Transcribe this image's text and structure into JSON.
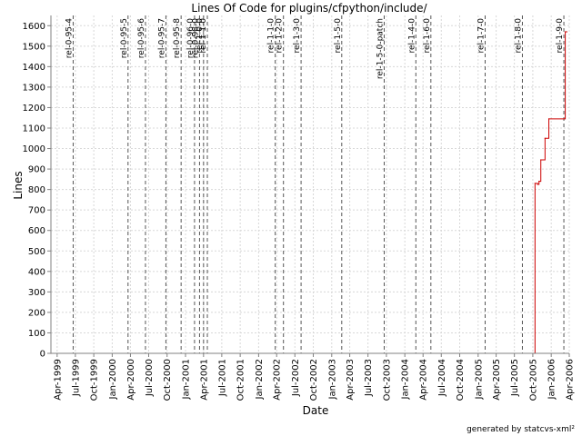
{
  "chart_data": {
    "type": "line",
    "title": "Lines Of Code for plugins/cfpython/include/",
    "xlabel": "Date",
    "ylabel": "Lines",
    "xlim": [
      "1999-03-01",
      "2006-04-01"
    ],
    "ylim": [
      0,
      1650
    ],
    "yticks": [
      0,
      100,
      200,
      300,
      400,
      500,
      600,
      700,
      800,
      900,
      1000,
      1100,
      1200,
      1300,
      1400,
      1500,
      1600
    ],
    "xticks": [
      {
        "date": "1999-04-01",
        "label": "Apr-1999"
      },
      {
        "date": "1999-07-01",
        "label": "Jul-1999"
      },
      {
        "date": "1999-10-01",
        "label": "Oct-1999"
      },
      {
        "date": "2000-01-01",
        "label": "Jan-2000"
      },
      {
        "date": "2000-04-01",
        "label": "Apr-2000"
      },
      {
        "date": "2000-07-01",
        "label": "Jul-2000"
      },
      {
        "date": "2000-10-01",
        "label": "Oct-2000"
      },
      {
        "date": "2001-01-01",
        "label": "Jan-2001"
      },
      {
        "date": "2001-04-01",
        "label": "Apr-2001"
      },
      {
        "date": "2001-07-01",
        "label": "Jul-2001"
      },
      {
        "date": "2001-10-01",
        "label": "Oct-2001"
      },
      {
        "date": "2002-01-01",
        "label": "Jan-2002"
      },
      {
        "date": "2002-04-01",
        "label": "Apr-2002"
      },
      {
        "date": "2002-07-01",
        "label": "Jul-2002"
      },
      {
        "date": "2002-10-01",
        "label": "Oct-2002"
      },
      {
        "date": "2003-01-01",
        "label": "Jan-2003"
      },
      {
        "date": "2003-04-01",
        "label": "Apr-2003"
      },
      {
        "date": "2003-07-01",
        "label": "Jul-2003"
      },
      {
        "date": "2003-10-01",
        "label": "Oct-2003"
      },
      {
        "date": "2004-01-01",
        "label": "Jan-2004"
      },
      {
        "date": "2004-04-01",
        "label": "Apr-2004"
      },
      {
        "date": "2004-07-01",
        "label": "Jul-2004"
      },
      {
        "date": "2004-10-01",
        "label": "Oct-2004"
      },
      {
        "date": "2005-01-01",
        "label": "Jan-2005"
      },
      {
        "date": "2005-04-01",
        "label": "Apr-2005"
      },
      {
        "date": "2005-07-01",
        "label": "Jul-2005"
      },
      {
        "date": "2005-10-01",
        "label": "Oct-2005"
      },
      {
        "date": "2006-01-01",
        "label": "Jan-2006"
      },
      {
        "date": "2006-04-01",
        "label": "Apr-2006"
      }
    ],
    "grid": true,
    "legend": "none",
    "series": [
      {
        "color": "#cc0000",
        "step": true,
        "points": [
          {
            "x": "1999-03-01",
            "y": 0
          },
          {
            "x": "2005-10-10",
            "y": 0
          },
          {
            "x": "2005-10-12",
            "y": 830
          },
          {
            "x": "2005-10-25",
            "y": 825
          },
          {
            "x": "2005-11-01",
            "y": 840
          },
          {
            "x": "2005-11-10",
            "y": 945
          },
          {
            "x": "2005-12-01",
            "y": 1050
          },
          {
            "x": "2005-12-20",
            "y": 1145
          },
          {
            "x": "2006-03-05",
            "y": 1145
          },
          {
            "x": "2006-03-12",
            "y": 1570
          },
          {
            "x": "2006-03-20",
            "y": 1570
          }
        ]
      }
    ],
    "releases": [
      {
        "date": "1999-06-20",
        "label": "rel-0-95-4"
      },
      {
        "date": "2000-03-20",
        "label": "rel-0-95-5"
      },
      {
        "date": "2000-06-15",
        "label": "rel-0-95-6"
      },
      {
        "date": "2000-09-25",
        "label": "rel-0-95-7"
      },
      {
        "date": "2000-12-10",
        "label": "rel-0-95-8"
      },
      {
        "date": "2001-02-15",
        "label": "rel-0-96-0"
      },
      {
        "date": "2001-03-12",
        "label": "rel-0-98-0"
      },
      {
        "date": "2001-04-01",
        "label": "rel-1-0-0"
      },
      {
        "date": "2001-04-20",
        "label": "rel-1-1-0"
      },
      {
        "date": "2002-03-25",
        "label": "rel-1-1-0"
      },
      {
        "date": "2002-05-05",
        "label": "rel-1-2-0"
      },
      {
        "date": "2002-08-01",
        "label": "rel-1-3-0"
      },
      {
        "date": "2003-02-20",
        "label": "rel-1-5-0"
      },
      {
        "date": "2003-09-20",
        "label": "rel-1-5-0-patch"
      },
      {
        "date": "2004-02-25",
        "label": "rel-1-4-0"
      },
      {
        "date": "2004-05-10",
        "label": "rel-1-6-0"
      },
      {
        "date": "2005-02-05",
        "label": "rel-1-7-0"
      },
      {
        "date": "2005-08-10",
        "label": "rel-1-8-0"
      },
      {
        "date": "2006-03-05",
        "label": "rel-1-9-0"
      }
    ]
  },
  "footer": "generated by statcvs-xml²"
}
